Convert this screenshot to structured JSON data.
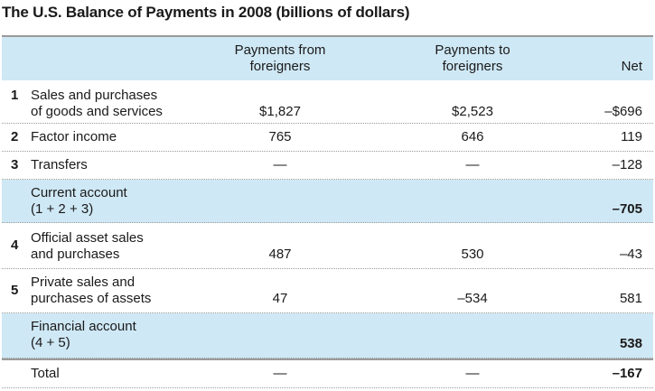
{
  "title": "The U.S. Balance of Payments in 2008 (billions of dollars)",
  "header": {
    "col1_line1": "Payments from",
    "col1_line2": "foreigners",
    "col2_line1": "Payments to",
    "col2_line2": "foreigners",
    "col3": "Net"
  },
  "rows": [
    {
      "num": "1",
      "label_line1": "Sales and purchases",
      "label_line2": "of goods and services",
      "from": "$1,827",
      "to": "$2,523",
      "net": "–$696"
    },
    {
      "num": "2",
      "label_line1": "Factor income",
      "from": "765",
      "to": "646",
      "net": "119"
    },
    {
      "num": "3",
      "label_line1": "Transfers",
      "from": "—",
      "to": "—",
      "net": "–128"
    },
    {
      "label_line1": "Current account",
      "label_line2": "(1 + 2 + 3)",
      "net": "–705"
    },
    {
      "num": "4",
      "label_line1": "Official asset sales",
      "label_line2": "and purchases",
      "from": "487",
      "to": "530",
      "net": "–43"
    },
    {
      "num": "5",
      "label_line1": "Private sales and",
      "label_line2": "purchases of assets",
      "from": "47",
      "to": "–534",
      "net": "581"
    },
    {
      "label_line1": "Financial account",
      "label_line2": "(4 + 5)",
      "net": "538"
    },
    {
      "label_line1": "Total",
      "from": "—",
      "to": "—",
      "net": "–167"
    }
  ],
  "colors": {
    "shade": "#cfe8f5",
    "rule": "#9a9a9a"
  }
}
